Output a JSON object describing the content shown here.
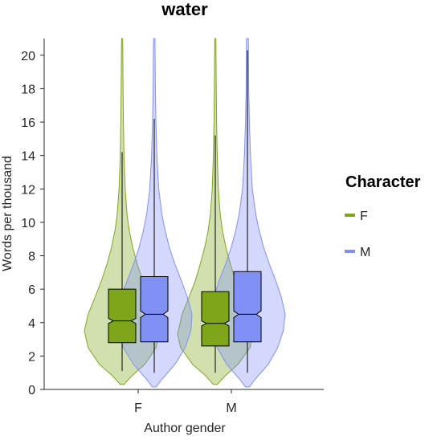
{
  "chart_data": {
    "type": "violin",
    "title": "water",
    "xlabel": "Author gender",
    "ylabel": "Words per thousand",
    "ylim": [
      0,
      21
    ],
    "yticks": [
      0,
      2,
      4,
      6,
      8,
      10,
      12,
      14,
      16,
      18,
      20
    ],
    "categories": [
      "F",
      "M"
    ],
    "legend": {
      "title": "Character",
      "placement": "right"
    },
    "grid": false,
    "series": [
      {
        "name": "F",
        "color": "#7fa61a",
        "groups": [
          {
            "category": "F",
            "box": {
              "q1": 2.8,
              "median": 4.1,
              "q3": 6.0,
              "whisker_low": 1.1,
              "whisker_high": 14.2,
              "notch_low": 3.95,
              "notch_high": 4.25
            },
            "density": [
              [
                0.3,
                0.05
              ],
              [
                0.8,
                0.25
              ],
              [
                1.5,
                0.6
              ],
              [
                2.5,
                0.9
              ],
              [
                3.5,
                1.0
              ],
              [
                4.5,
                0.9
              ],
              [
                5.5,
                0.72
              ],
              [
                6.5,
                0.55
              ],
              [
                7.5,
                0.4
              ],
              [
                8.5,
                0.28
              ],
              [
                9.5,
                0.19
              ],
              [
                10.5,
                0.13
              ],
              [
                12,
                0.08
              ],
              [
                14,
                0.05
              ],
              [
                16,
                0.035
              ],
              [
                18,
                0.025
              ],
              [
                21,
                0.015
              ]
            ]
          },
          {
            "category": "M",
            "box": {
              "q1": 2.6,
              "median": 3.95,
              "q3": 5.85,
              "whisker_low": 1.0,
              "whisker_high": 15.2,
              "notch_low": 3.8,
              "notch_high": 4.1
            },
            "density": [
              [
                0.3,
                0.05
              ],
              [
                0.8,
                0.25
              ],
              [
                1.5,
                0.6
              ],
              [
                2.5,
                0.92
              ],
              [
                3.3,
                1.0
              ],
              [
                4.5,
                0.88
              ],
              [
                5.5,
                0.7
              ],
              [
                6.5,
                0.53
              ],
              [
                7.5,
                0.4
              ],
              [
                8.5,
                0.28
              ],
              [
                9.5,
                0.19
              ],
              [
                10.5,
                0.13
              ],
              [
                12,
                0.08
              ],
              [
                14,
                0.05
              ],
              [
                16,
                0.035
              ],
              [
                18,
                0.025
              ],
              [
                21,
                0.015
              ]
            ]
          }
        ]
      },
      {
        "name": "M",
        "color": "#8090f5",
        "groups": [
          {
            "category": "F",
            "box": {
              "q1": 2.85,
              "median": 4.5,
              "q3": 6.75,
              "whisker_low": 1.0,
              "whisker_high": 16.2,
              "notch_low": 4.3,
              "notch_high": 4.7
            },
            "density": [
              [
                0.15,
                0.05
              ],
              [
                0.6,
                0.2
              ],
              [
                1.5,
                0.55
              ],
              [
                2.5,
                0.82
              ],
              [
                3.5,
                0.97
              ],
              [
                4.5,
                1.0
              ],
              [
                5.5,
                0.88
              ],
              [
                6.5,
                0.72
              ],
              [
                7.5,
                0.55
              ],
              [
                8.5,
                0.4
              ],
              [
                9.5,
                0.29
              ],
              [
                10.5,
                0.2
              ],
              [
                12,
                0.12
              ],
              [
                14,
                0.07
              ],
              [
                16,
                0.045
              ],
              [
                18,
                0.03
              ],
              [
                21,
                0.02
              ]
            ]
          },
          {
            "category": "M",
            "box": {
              "q1": 2.85,
              "median": 4.5,
              "q3": 7.05,
              "whisker_low": 1.0,
              "whisker_high": 20.3,
              "notch_low": 4.3,
              "notch_high": 4.7
            },
            "density": [
              [
                0.15,
                0.05
              ],
              [
                0.6,
                0.2
              ],
              [
                1.5,
                0.55
              ],
              [
                2.5,
                0.8
              ],
              [
                3.5,
                0.95
              ],
              [
                4.5,
                1.0
              ],
              [
                5.5,
                0.9
              ],
              [
                6.5,
                0.75
              ],
              [
                7.5,
                0.58
              ],
              [
                8.5,
                0.43
              ],
              [
                9.5,
                0.31
              ],
              [
                10.5,
                0.22
              ],
              [
                12,
                0.13
              ],
              [
                14,
                0.08
              ],
              [
                16,
                0.05
              ],
              [
                18,
                0.035
              ],
              [
                21,
                0.025
              ]
            ]
          }
        ]
      }
    ]
  }
}
